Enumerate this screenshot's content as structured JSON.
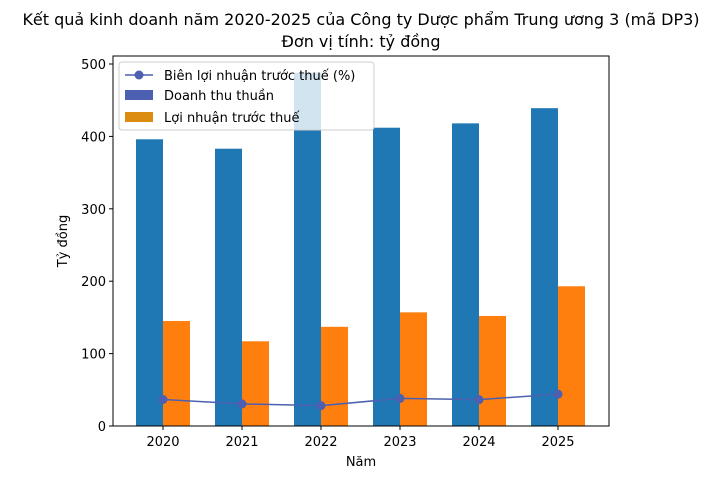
{
  "chart_data": {
    "type": "bar",
    "title": "Kết quả kinh doanh năm 2020-2025 của Công ty Dược phẩm Trung ương 3 (mã DP3)",
    "subtitle": "Đơn vị tính: tỷ đồng",
    "xlabel": "Năm",
    "ylabel": "Tỷ đồng",
    "ylim": [
      0,
      500
    ],
    "yticks": [
      0,
      100,
      200,
      300,
      400,
      500
    ],
    "categories": [
      "2020",
      "2021",
      "2022",
      "2023",
      "2024",
      "2025"
    ],
    "series": [
      {
        "name": "Doanh thu thuần",
        "type": "bar",
        "color": "#1f77b4",
        "values": [
          396,
          383,
          488,
          412,
          418,
          439
        ]
      },
      {
        "name": "Lợi nhuận trước thuế",
        "type": "bar",
        "color": "#ff7f0e",
        "values": [
          145,
          117,
          137,
          157,
          152,
          193
        ]
      },
      {
        "name": "Biên lợi nhuận trước thuế (%)",
        "type": "line",
        "color": "#4c5fb0",
        "values": [
          36.6,
          30.5,
          28.1,
          38.1,
          36.4,
          44.0
        ]
      }
    ],
    "legend_position": "upper left",
    "grid": false
  }
}
